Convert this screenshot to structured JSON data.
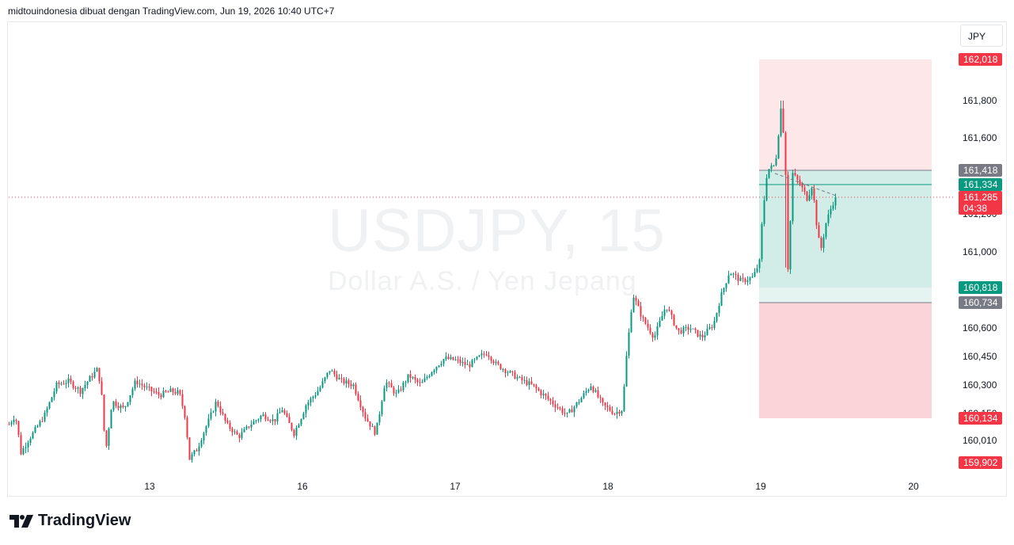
{
  "header": {
    "caption": "midtouindonesia dibuat dengan TradingView.com, Jun 19, 2026 10:40 UTC+7"
  },
  "currency_selector": {
    "label": "JPY"
  },
  "watermark": {
    "symbol": "USDJPY, 15",
    "description": "Dollar A.S. / Yen Jepang"
  },
  "brand": {
    "name": "TradingView"
  },
  "colors": {
    "up": "#089981",
    "down": "#f23645",
    "grid": "#f0f3fa",
    "tp_zone": "#d2ede8",
    "sl_zone": "#fad4d8",
    "range_zone": "#fde7e9",
    "gray_tag": "#787b86"
  },
  "chart_data": {
    "type": "candlestick",
    "symbol": "USDJPY",
    "interval": "15",
    "y_axis": {
      "min": 159.902,
      "max": 162.018,
      "ticks": [
        "160,010",
        "160,150",
        "160,300",
        "160,450",
        "160,600",
        "161,000",
        "161,200",
        "161,600",
        "161,800"
      ]
    },
    "x_axis": {
      "ticks": [
        "13",
        "16",
        "17",
        "18",
        "19",
        "20"
      ]
    },
    "price_tags": [
      {
        "label": "162,018",
        "color": "#f23645"
      },
      {
        "label": "161,418",
        "color": "#787b86"
      },
      {
        "label": "161,334",
        "color": "#089981"
      },
      {
        "label": "161,285",
        "sub": "04:38",
        "color": "#f23645"
      },
      {
        "label": "160,818",
        "color": "#089981"
      },
      {
        "label": "160,734",
        "color": "#787b86"
      },
      {
        "label": "160,134",
        "color": "#f23645"
      },
      {
        "label": "159,902",
        "color": "#f23645"
      }
    ],
    "current_price": 161.285,
    "countdown": "04:38",
    "position": {
      "entry": 161.334,
      "take_profit": 160.818,
      "stop": 161.418,
      "range_high": 162.018,
      "range_low": 160.134,
      "line_low": 160.734
    },
    "session_high": 161.8,
    "session_low": 159.902,
    "price_path": [
      [
        0,
        160.1
      ],
      [
        8,
        160.15
      ],
      [
        15,
        159.95
      ],
      [
        30,
        160.05
      ],
      [
        45,
        160.15
      ],
      [
        60,
        160.3
      ],
      [
        75,
        160.32
      ],
      [
        90,
        160.27
      ],
      [
        105,
        160.35
      ],
      [
        111,
        160.38
      ],
      [
        116,
        160.3
      ],
      [
        122,
        159.95
      ],
      [
        130,
        160.22
      ],
      [
        145,
        160.18
      ],
      [
        160,
        160.32
      ],
      [
        175,
        160.28
      ],
      [
        190,
        160.25
      ],
      [
        205,
        160.27
      ],
      [
        215,
        160.26
      ],
      [
        222,
        160.15
      ],
      [
        228,
        159.92
      ],
      [
        238,
        159.97
      ],
      [
        250,
        160.1
      ],
      [
        262,
        160.22
      ],
      [
        275,
        160.1
      ],
      [
        290,
        160.03
      ],
      [
        305,
        160.1
      ],
      [
        320,
        160.15
      ],
      [
        335,
        160.12
      ],
      [
        345,
        160.18
      ],
      [
        360,
        160.05
      ],
      [
        375,
        160.2
      ],
      [
        392,
        160.28
      ],
      [
        405,
        160.38
      ],
      [
        420,
        160.32
      ],
      [
        435,
        160.3
      ],
      [
        450,
        160.14
      ],
      [
        463,
        160.05
      ],
      [
        475,
        160.32
      ],
      [
        490,
        160.25
      ],
      [
        505,
        160.35
      ],
      [
        520,
        160.3
      ],
      [
        535,
        160.38
      ],
      [
        550,
        160.44
      ],
      [
        565,
        160.43
      ],
      [
        580,
        160.4
      ],
      [
        595,
        160.45
      ],
      [
        604,
        160.47
      ],
      [
        615,
        160.41
      ],
      [
        630,
        160.37
      ],
      [
        645,
        160.33
      ],
      [
        660,
        160.3
      ],
      [
        675,
        160.25
      ],
      [
        690,
        160.2
      ],
      [
        705,
        160.15
      ],
      [
        720,
        160.22
      ],
      [
        735,
        160.3
      ],
      [
        750,
        160.2
      ],
      [
        765,
        160.16
      ],
      [
        775,
        160.18
      ],
      [
        780,
        160.45
      ],
      [
        788,
        160.78
      ],
      [
        800,
        160.65
      ],
      [
        815,
        160.55
      ],
      [
        830,
        160.72
      ],
      [
        845,
        160.58
      ],
      [
        860,
        160.6
      ],
      [
        875,
        160.55
      ],
      [
        890,
        160.62
      ],
      [
        900,
        160.78
      ],
      [
        910,
        160.9
      ],
      [
        925,
        160.85
      ],
      [
        940,
        160.87
      ],
      [
        948,
        160.95
      ],
      [
        952,
        161.2
      ],
      [
        958,
        161.42
      ],
      [
        968,
        161.45
      ],
      [
        976,
        161.8
      ],
      [
        981,
        161.4
      ],
      [
        984,
        160.92
      ],
      [
        990,
        161.4
      ],
      [
        1000,
        161.33
      ],
      [
        1008,
        161.28
      ],
      [
        1015,
        161.34
      ],
      [
        1020,
        161.15
      ],
      [
        1025,
        161.0
      ],
      [
        1032,
        161.15
      ],
      [
        1040,
        161.25
      ],
      [
        1046,
        161.29
      ]
    ]
  }
}
